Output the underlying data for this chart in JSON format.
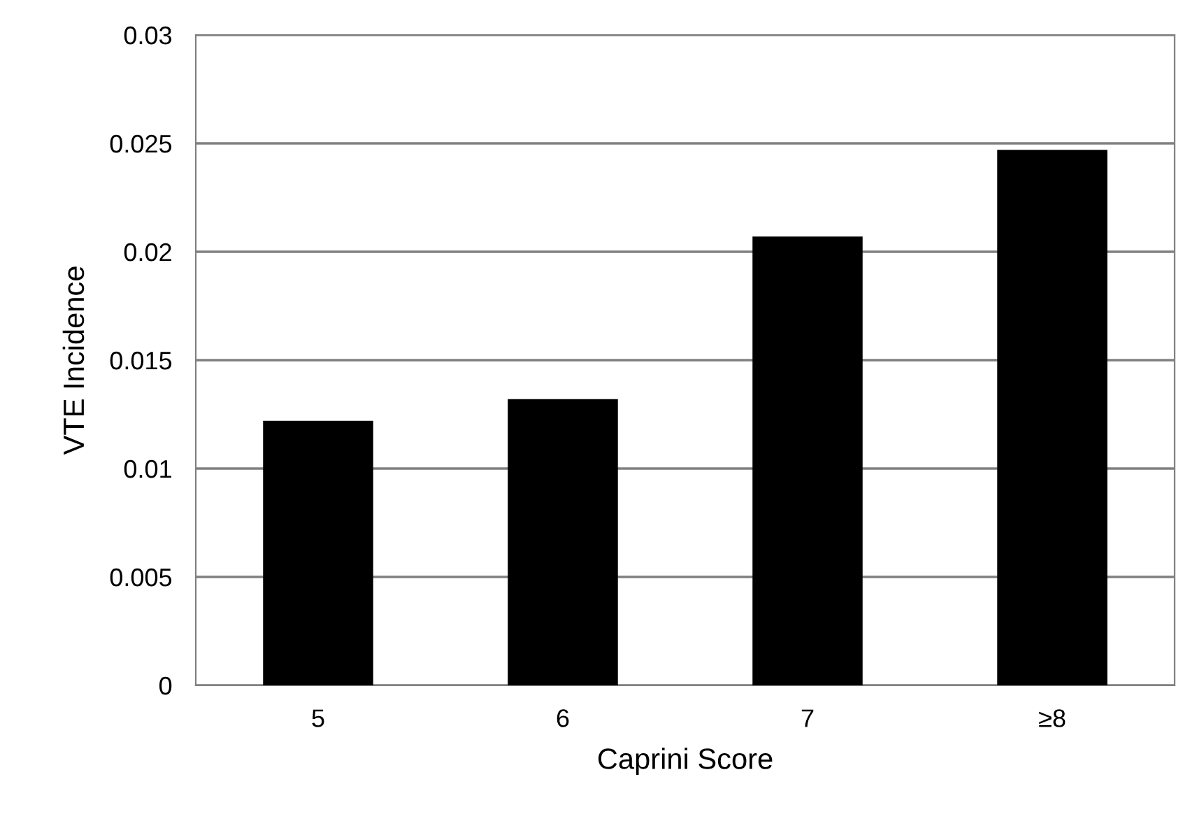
{
  "chart_data": {
    "type": "bar",
    "xlabel": "Caprini Score",
    "ylabel": "VTE Incidence",
    "categories": [
      "5",
      "6",
      "7",
      "≥8"
    ],
    "values": [
      0.0122,
      0.0132,
      0.0207,
      0.0247
    ],
    "color": "#000000",
    "ylim": [
      0,
      0.03
    ],
    "yticks": [
      {
        "value": 0,
        "label": "0"
      },
      {
        "value": 0.005,
        "label": "0.005"
      },
      {
        "value": 0.01,
        "label": "0.01"
      },
      {
        "value": 0.015,
        "label": "0.015"
      },
      {
        "value": 0.02,
        "label": "0.02"
      },
      {
        "value": 0.025,
        "label": "0.025"
      },
      {
        "value": 0.03,
        "label": "0.03"
      }
    ],
    "grid": "y",
    "legend": false
  }
}
